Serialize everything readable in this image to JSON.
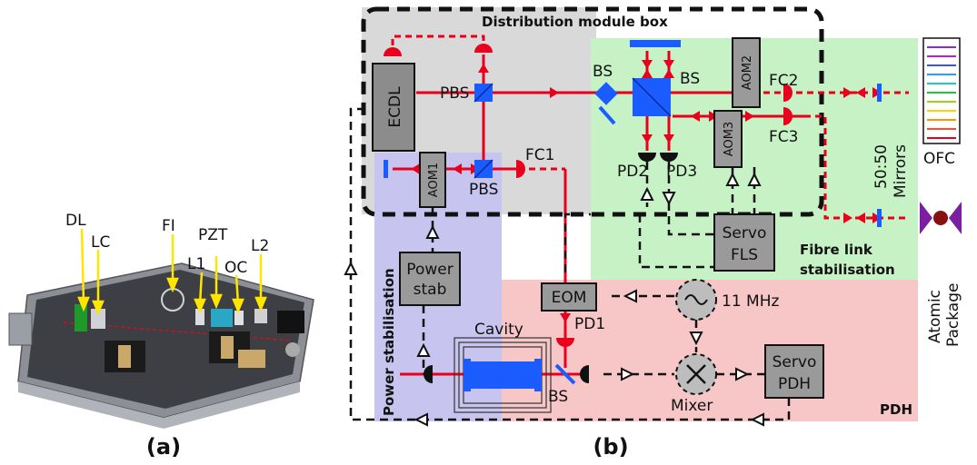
{
  "panel_a": {
    "caption": "(a)",
    "labels": {
      "dl": "DL",
      "lc": "LC",
      "fi": "FI",
      "pzt": "PZT",
      "l1": "L1",
      "oc": "OC",
      "l2": "L2"
    }
  },
  "panel_b": {
    "caption": "(b)",
    "regions": {
      "distribution": "Distribution module box",
      "fibre_link": "Fibre link",
      "fibre_link2": "stabilisation",
      "power_stab": "Power stabilisation",
      "pdh": "PDH"
    },
    "components": {
      "ecdl": "ECDL",
      "pbs1": "PBS",
      "pbs2": "PBS",
      "bs1": "BS",
      "bs2": "BS",
      "bs3": "BS",
      "aom1": "AOM1",
      "aom2": "AOM2",
      "aom3": "AOM3",
      "fc1": "FC1",
      "fc2": "FC2",
      "fc3": "FC3",
      "pd1": "PD1",
      "pd2": "PD2",
      "pd3": "PD3",
      "splitter": "50:50",
      "mirrors": "Mirrors",
      "ofc": "OFC",
      "atomic1": "Atomic",
      "atomic2": "Package",
      "power_stab_box1": "Power",
      "power_stab_box2": "stab",
      "servo_fls1": "Servo",
      "servo_fls2": "FLS",
      "servo_pdh1": "Servo",
      "servo_pdh2": "PDH",
      "eom": "EOM",
      "freq": "11 MHz",
      "cavity": "Cavity",
      "mixer": "Mixer"
    },
    "colors": {
      "beam": "#e8001c",
      "optic": "#1a5cff",
      "gray_region": "#d9d9d9",
      "green_region": "#c6f2c6",
      "blue_region": "#c8c4f0",
      "pink_region": "#f7c6c6"
    }
  }
}
